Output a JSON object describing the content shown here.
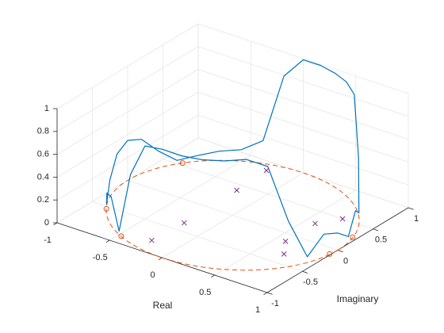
{
  "chart_data": {
    "type": "line3d",
    "xlabel": "Real",
    "ylabel": "Imaginary",
    "xlim": [
      -1,
      1
    ],
    "ylim": [
      -1,
      1
    ],
    "zlim": [
      0,
      1
    ],
    "xticks": [
      -1,
      -0.5,
      0,
      0.5,
      1
    ],
    "yticks": [
      -1,
      -0.5,
      0,
      0.5,
      1
    ],
    "zticks": [
      0,
      0.2,
      0.4,
      0.6,
      0.8,
      1
    ],
    "grid": true,
    "unit_circle_color": "#d95319",
    "response": {
      "color": "#0072bd",
      "x": [
        -180,
        -170,
        -160,
        -150,
        -140,
        -130,
        -120,
        -110,
        -100,
        -90,
        -80,
        -70,
        -60,
        -50,
        -40,
        -30,
        -20,
        -10,
        0,
        10,
        20,
        30,
        40,
        50,
        60,
        70,
        80,
        90,
        100,
        110,
        120,
        130,
        140,
        150,
        160,
        170,
        180
      ],
      "values": [
        0.35,
        0.3,
        0.15,
        0.02,
        0.2,
        0.25,
        0.03,
        0.6,
        0.92,
        0.95,
        0.94,
        0.94,
        0.95,
        0.97,
        0.9,
        0.4,
        0.05,
        0.2,
        0.15,
        0.05,
        0.2,
        0.1,
        0.5,
        0.97,
        1.0,
        1.0,
        1.0,
        0.99,
        0.8,
        0.2,
        0.1,
        0.08,
        0.05,
        0.03,
        0.15,
        0.3,
        0.35
      ]
    },
    "poles": {
      "color": "#7e2f8e",
      "real": [
        -0.24,
        -0.22,
        -0.23,
        -0.25,
        0.59,
        0.71,
        0.59,
        0.71
      ],
      "imag": [
        -0.79,
        -0.36,
        0.4,
        0.85,
        -0.13,
        -0.33,
        0.29,
        0.5
      ]
    },
    "zeros": {
      "color": "#d95319",
      "real": [
        -0.84,
        -0.84,
        -0.47,
        0.99,
        0.96
      ],
      "imag": [
        0.54,
        -0.54,
        -0.88,
        -0.1,
        0.27
      ]
    }
  }
}
